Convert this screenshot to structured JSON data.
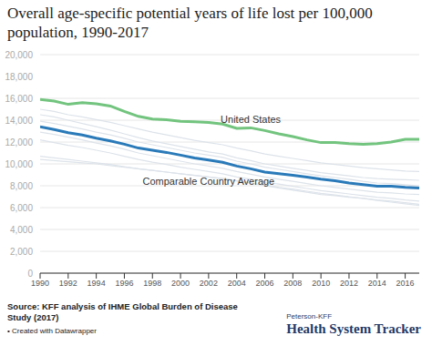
{
  "chart_data": {
    "type": "line",
    "title": "Overall age-specific potential years of life lost per 100,000 population, 1990-2017",
    "source": "Source: KFF analysis of IHME Global Burden of Disease Study (2017)",
    "credit": "• Created with Datawrapper",
    "brand": [
      "Peterson-KFF",
      "Health System Tracker"
    ],
    "x": [
      1990,
      1991,
      1992,
      1993,
      1994,
      1995,
      1996,
      1997,
      1998,
      1999,
      2000,
      2001,
      2002,
      2003,
      2004,
      2005,
      2006,
      2007,
      2008,
      2009,
      2010,
      2011,
      2012,
      2013,
      2014,
      2015,
      2016,
      2017
    ],
    "xlim": [
      1990,
      2017
    ],
    "xticks": [
      1990,
      1992,
      1994,
      1996,
      1998,
      2000,
      2002,
      2004,
      2006,
      2008,
      2010,
      2012,
      2014,
      2016
    ],
    "ylim": [
      0,
      20000
    ],
    "yticks": [
      0,
      {
        "value": 2000,
        "label": "2,000"
      },
      {
        "value": 4000,
        "label": "4,000"
      },
      {
        "value": 6000,
        "label": "6,000"
      },
      {
        "value": 8000,
        "label": "8,000"
      },
      {
        "value": 10000,
        "label": "10,000"
      },
      {
        "value": 12000,
        "label": "12,000"
      },
      {
        "value": 14000,
        "label": "14,000"
      },
      {
        "value": 16000,
        "label": "16,000"
      },
      {
        "value": 18000,
        "label": "18,000"
      },
      {
        "value": 20000,
        "label": "20,000"
      }
    ],
    "grid": true,
    "series": [
      {
        "color": "#dde3ea",
        "values": [
          15000,
          14800,
          14500,
          14300,
          14050,
          13800,
          13500,
          13200,
          12900,
          12650,
          12400,
          12150,
          11950,
          11750,
          11450,
          11200,
          10900,
          10700,
          10500,
          10300,
          10100,
          9950,
          9800,
          9650,
          9550,
          9450,
          9350,
          9300
        ]
      },
      {
        "color": "#dde3ea",
        "values": [
          14500,
          14300,
          14000,
          13700,
          13400,
          13100,
          12750,
          12400,
          12100,
          11850,
          11600,
          11350,
          11100,
          10900,
          10550,
          10300,
          10000,
          9800,
          9600,
          9400,
          9200,
          9050,
          8900,
          8750,
          8650,
          8600,
          8550,
          8500
        ]
      },
      {
        "color": "#dde3ea",
        "values": [
          13900,
          13700,
          13450,
          13200,
          12900,
          12650,
          12350,
          12000,
          11750,
          11500,
          11250,
          11000,
          10800,
          10600,
          10250,
          10000,
          9700,
          9500,
          9300,
          9100,
          8900,
          8750,
          8600,
          8400,
          8250,
          8200,
          8100,
          8000
        ]
      },
      {
        "color": "#dde3ea",
        "values": [
          12900,
          12700,
          12450,
          12200,
          11900,
          11650,
          11350,
          11000,
          10750,
          10500,
          10250,
          10000,
          9800,
          9600,
          9300,
          9050,
          8800,
          8600,
          8400,
          8200,
          8000,
          7850,
          7700,
          7550,
          7400,
          7350,
          7250,
          7200
        ]
      },
      {
        "color": "#dde3ea",
        "values": [
          12200,
          11950,
          11700,
          11500,
          11250,
          11000,
          10700,
          10400,
          10150,
          9950,
          9700,
          9500,
          9300,
          9100,
          8800,
          8600,
          8350,
          8150,
          7950,
          7750,
          7550,
          7400,
          7250,
          7100,
          6950,
          6850,
          6700,
          6600
        ]
      },
      {
        "color": "#dde3ea",
        "values": [
          10700,
          10550,
          10400,
          10250,
          10100,
          9950,
          9750,
          9550,
          9400,
          9250,
          9100,
          8950,
          8800,
          8650,
          8450,
          8250,
          8000,
          7800,
          7600,
          7400,
          7200,
          7100,
          6950,
          6850,
          6700,
          6600,
          6450,
          6300
        ]
      },
      {
        "color": "#dde3ea",
        "values": [
          10400,
          10300,
          10200,
          10100,
          10000,
          9850,
          9700,
          9550,
          9400,
          9250,
          9100,
          8950,
          8800,
          8650,
          8450,
          8250,
          8050,
          7850,
          7700,
          7500,
          7300,
          7150,
          7000,
          6850,
          6650,
          6500,
          6350,
          6200
        ]
      },
      {
        "name": "United States",
        "color": "#72c47e",
        "label_at": {
          "x": 2005,
          "y": 14050
        },
        "values": [
          15900,
          15750,
          15450,
          15600,
          15500,
          15300,
          14800,
          14350,
          14100,
          14050,
          13900,
          13850,
          13800,
          13650,
          13250,
          13300,
          13050,
          12750,
          12500,
          12200,
          11950,
          11950,
          11850,
          11800,
          11850,
          12000,
          12250,
          12250
        ]
      },
      {
        "name": "Comparable Country Average",
        "color": "#2a7ab9",
        "label_at": {
          "x": 2002,
          "y": 8450
        },
        "values": [
          13400,
          13150,
          12850,
          12650,
          12350,
          12100,
          11800,
          11450,
          11250,
          11050,
          10800,
          10550,
          10350,
          10150,
          9800,
          9550,
          9250,
          9100,
          8950,
          8800,
          8600,
          8450,
          8250,
          8100,
          7950,
          7950,
          7850,
          7800
        ]
      }
    ]
  }
}
